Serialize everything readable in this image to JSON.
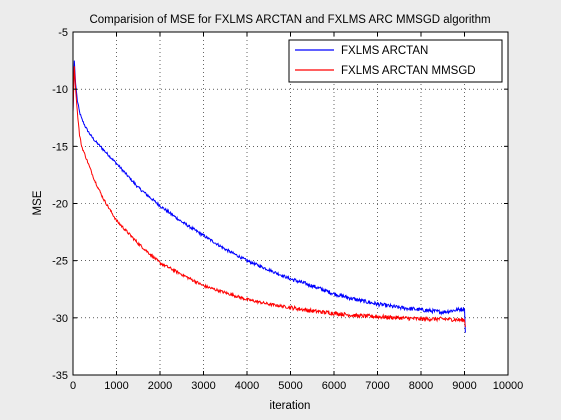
{
  "chart_data": {
    "type": "line",
    "title": "Comparision of MSE for FXLMS ARCTAN and FXLMS ARC MMSGD algorithm",
    "xlabel": "iteration",
    "ylabel": "MSE",
    "xlim": [
      0,
      10000
    ],
    "ylim": [
      -35,
      -5
    ],
    "xticks": [
      0,
      1000,
      2000,
      3000,
      4000,
      5000,
      6000,
      7000,
      8000,
      9000,
      10000
    ],
    "yticks": [
      -35,
      -30,
      -25,
      -20,
      -15,
      -10,
      -5
    ],
    "xtick_labels": [
      "0",
      "1000",
      "2000",
      "3000",
      "4000",
      "5000",
      "6000",
      "7000",
      "8000",
      "9000",
      "10000"
    ],
    "ytick_labels": [
      "-35",
      "-30",
      "-25",
      "-20",
      "-15",
      "-10",
      "-5"
    ],
    "grid": true,
    "legend_position": "top-right",
    "series": [
      {
        "name": "FXLMS ARCTAN",
        "color": "#0000ff",
        "x": [
          0,
          30,
          60,
          100,
          150,
          200,
          300,
          400,
          500,
          700,
          1000,
          1500,
          2000,
          2500,
          3000,
          3500,
          4000,
          4500,
          5000,
          5500,
          6000,
          6500,
          7000,
          7500,
          8000,
          8500,
          9000,
          9020
        ],
        "y": [
          -12,
          -7.5,
          -9.5,
          -11,
          -12,
          -12.6,
          -13.4,
          -14.0,
          -14.5,
          -15.3,
          -16.5,
          -18.6,
          -20.2,
          -21.6,
          -22.8,
          -24.0,
          -25.0,
          -25.8,
          -26.6,
          -27.2,
          -27.9,
          -28.4,
          -28.8,
          -29.1,
          -29.3,
          -29.5,
          -29.2,
          -31.3
        ]
      },
      {
        "name": "FXLMS ARCTAN MMSGD",
        "color": "#ff0000",
        "x": [
          0,
          30,
          60,
          100,
          150,
          200,
          300,
          400,
          500,
          700,
          1000,
          1500,
          2000,
          2500,
          3000,
          3500,
          4000,
          4500,
          5000,
          5500,
          6000,
          6500,
          7000,
          7500,
          8000,
          8500,
          9000,
          9020
        ],
        "y": [
          -12,
          -8.0,
          -10,
          -12,
          -14.0,
          -15.0,
          -16.0,
          -17.0,
          -18.0,
          -19.6,
          -21.5,
          -23.5,
          -25.2,
          -26.2,
          -27.2,
          -27.8,
          -28.4,
          -28.8,
          -29.1,
          -29.4,
          -29.6,
          -29.8,
          -29.9,
          -30.0,
          -30.1,
          -30.1,
          -30.2,
          -30.8
        ]
      }
    ]
  }
}
